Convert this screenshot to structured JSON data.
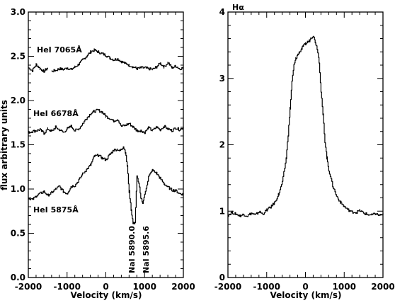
{
  "chart_data": [
    {
      "type": "line",
      "title": "",
      "xlabel": "Velocity (km/s)",
      "ylabel": "flux arbitrary units",
      "xlim": [
        -2000,
        2000
      ],
      "ylim": [
        0,
        3
      ],
      "xticks": [
        "-2000",
        "-1000",
        "0",
        "1000",
        "2000"
      ],
      "yticks": [
        "0.0",
        "0.5",
        "1.0",
        "1.5",
        "2.0",
        "2.5",
        "3.0"
      ],
      "grid": false,
      "series": [
        {
          "name": "HeI 7065Å",
          "x": [
            -2000,
            -1900,
            -1800,
            -1700,
            -1600,
            -1500,
            -1450,
            -1400,
            -1300,
            -1200,
            -1100,
            -1000,
            -900,
            -800,
            -700,
            -600,
            -500,
            -400,
            -300,
            -200,
            -100,
            0,
            100,
            200,
            300,
            400,
            500,
            600,
            700,
            800,
            900,
            1000,
            1100,
            1200,
            1300,
            1400,
            1500,
            1600,
            1700,
            1800,
            1900,
            2000
          ],
          "y": [
            2.37,
            2.34,
            2.41,
            2.36,
            2.33,
            2.37,
            null,
            2.33,
            2.34,
            2.36,
            2.35,
            2.37,
            2.35,
            2.38,
            2.41,
            2.46,
            2.5,
            2.55,
            2.57,
            2.55,
            2.53,
            2.51,
            2.48,
            2.46,
            2.47,
            2.44,
            2.42,
            2.4,
            2.38,
            2.36,
            2.37,
            2.37,
            2.36,
            2.35,
            2.38,
            2.42,
            2.38,
            2.43,
            2.37,
            2.39,
            2.36,
            2.37
          ]
        },
        {
          "name": "HeI 6678Å",
          "x": [
            -2000,
            -1900,
            -1800,
            -1700,
            -1600,
            -1500,
            -1400,
            -1300,
            -1200,
            -1100,
            -1000,
            -900,
            -800,
            -700,
            -600,
            -500,
            -400,
            -300,
            -200,
            -100,
            0,
            100,
            200,
            300,
            400,
            500,
            600,
            700,
            800,
            900,
            1000,
            1100,
            1200,
            1300,
            1400,
            1500,
            1600,
            1700,
            1800,
            1900,
            2000
          ],
          "y": [
            1.64,
            1.65,
            1.66,
            1.67,
            1.63,
            1.68,
            1.65,
            1.7,
            1.67,
            1.64,
            1.68,
            1.71,
            1.66,
            1.68,
            1.74,
            1.8,
            1.85,
            1.88,
            1.89,
            1.87,
            1.82,
            1.8,
            1.77,
            1.79,
            1.71,
            1.72,
            1.74,
            1.7,
            1.66,
            1.66,
            1.64,
            1.69,
            1.66,
            1.7,
            1.67,
            1.71,
            1.68,
            1.66,
            1.69,
            1.67,
            1.7
          ]
        },
        {
          "name": "HeI 5875Å",
          "x": [
            -2000,
            -1900,
            -1800,
            -1700,
            -1600,
            -1500,
            -1400,
            -1300,
            -1200,
            -1100,
            -1000,
            -900,
            -800,
            -700,
            -600,
            -500,
            -400,
            -300,
            -200,
            -100,
            0,
            100,
            200,
            300,
            350,
            400,
            450,
            500,
            550,
            600,
            650,
            700,
            750,
            800,
            850,
            900,
            950,
            1000,
            1100,
            1200,
            1300,
            1400,
            1500,
            1600,
            1700,
            1800,
            1900,
            2000
          ],
          "y": [
            0.9,
            0.88,
            0.92,
            0.95,
            0.97,
            0.93,
            0.96,
            1.0,
            1.03,
            0.97,
            0.95,
            1.03,
            1.04,
            1.1,
            1.17,
            1.22,
            1.27,
            1.37,
            1.38,
            1.35,
            1.33,
            1.39,
            1.44,
            1.45,
            1.43,
            1.45,
            1.48,
            1.42,
            1.26,
            0.97,
            0.77,
            0.61,
            0.62,
            1.14,
            1.07,
            0.89,
            0.85,
            0.93,
            1.14,
            1.21,
            1.18,
            1.12,
            1.06,
            1.02,
            0.99,
            0.98,
            0.95,
            0.94
          ]
        }
      ],
      "annotations": [
        "HeI 7065Å",
        "HeI 6678Å",
        "HeI 5875Å",
        "NaI 5890.0",
        "NaI 5895.6"
      ]
    },
    {
      "type": "line",
      "title": "",
      "xlabel": "Velocity (km/s)",
      "ylabel": "",
      "xlim": [
        -2000,
        2000
      ],
      "ylim": [
        0,
        4
      ],
      "xticks": [
        "-2000",
        "-1000",
        "0",
        "1000",
        "2000"
      ],
      "yticks": [
        "0",
        "1",
        "2",
        "3",
        "4"
      ],
      "grid": false,
      "series": [
        {
          "name": "Hα",
          "x": [
            -2000,
            -1900,
            -1800,
            -1700,
            -1600,
            -1500,
            -1400,
            -1300,
            -1200,
            -1100,
            -1000,
            -900,
            -800,
            -700,
            -600,
            -500,
            -450,
            -400,
            -350,
            -300,
            -250,
            -200,
            -150,
            -100,
            -50,
            0,
            50,
            100,
            150,
            200,
            250,
            300,
            350,
            400,
            450,
            500,
            550,
            600,
            700,
            800,
            900,
            1000,
            1100,
            1200,
            1300,
            1400,
            1500,
            1600,
            1700,
            1800,
            1900,
            2000
          ],
          "y": [
            0.94,
            0.98,
            0.96,
            0.93,
            0.95,
            0.93,
            0.97,
            0.94,
            0.99,
            0.96,
            1.02,
            1.06,
            1.13,
            1.25,
            1.43,
            1.8,
            2.15,
            2.55,
            2.95,
            3.2,
            3.3,
            3.36,
            3.4,
            3.45,
            3.49,
            3.52,
            3.55,
            3.57,
            3.62,
            3.64,
            3.55,
            3.45,
            3.25,
            2.8,
            2.45,
            2.05,
            1.8,
            1.62,
            1.38,
            1.23,
            1.13,
            1.07,
            1.02,
            0.99,
            0.98,
            1.01,
            0.97,
            0.95,
            0.94,
            0.96,
            0.94,
            0.95
          ]
        }
      ],
      "annotations": [
        "Hα"
      ]
    }
  ]
}
